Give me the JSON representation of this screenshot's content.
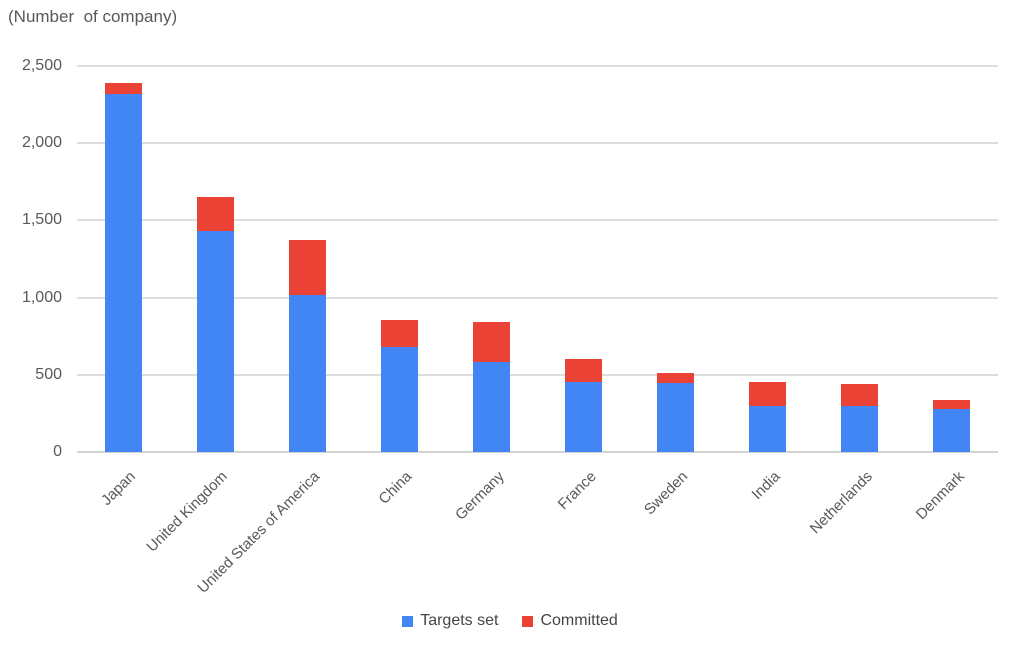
{
  "chart_data": {
    "type": "bar",
    "stacked": true,
    "title": "(Number  of company)",
    "categories": [
      "Japan",
      "United Kingdom",
      "United States of America",
      "China",
      "Germany",
      "France",
      "Sweden",
      "India",
      "Netherlands",
      "Denmark"
    ],
    "series": [
      {
        "name": "Targets set",
        "color": "#4285F4",
        "values": [
          2320,
          1430,
          1020,
          680,
          580,
          455,
          450,
          300,
          295,
          280
        ]
      },
      {
        "name": "Committed",
        "color": "#EA4335",
        "values": [
          70,
          220,
          350,
          175,
          260,
          145,
          65,
          155,
          145,
          55
        ]
      }
    ],
    "xlabel": "",
    "ylabel": "",
    "ylim": [
      0,
      2500
    ],
    "ytick_interval": 500,
    "ytick_labels": [
      "0",
      "500",
      "1,000",
      "1,500",
      "2,000",
      "2,500"
    ],
    "grid": true,
    "legend_position": "bottom"
  },
  "styles": {
    "background": "#ffffff",
    "grid_color": "#dedede",
    "axis_line_color": "#d4d4d4",
    "text_color": "#595959",
    "legend_text_color": "#454545"
  }
}
